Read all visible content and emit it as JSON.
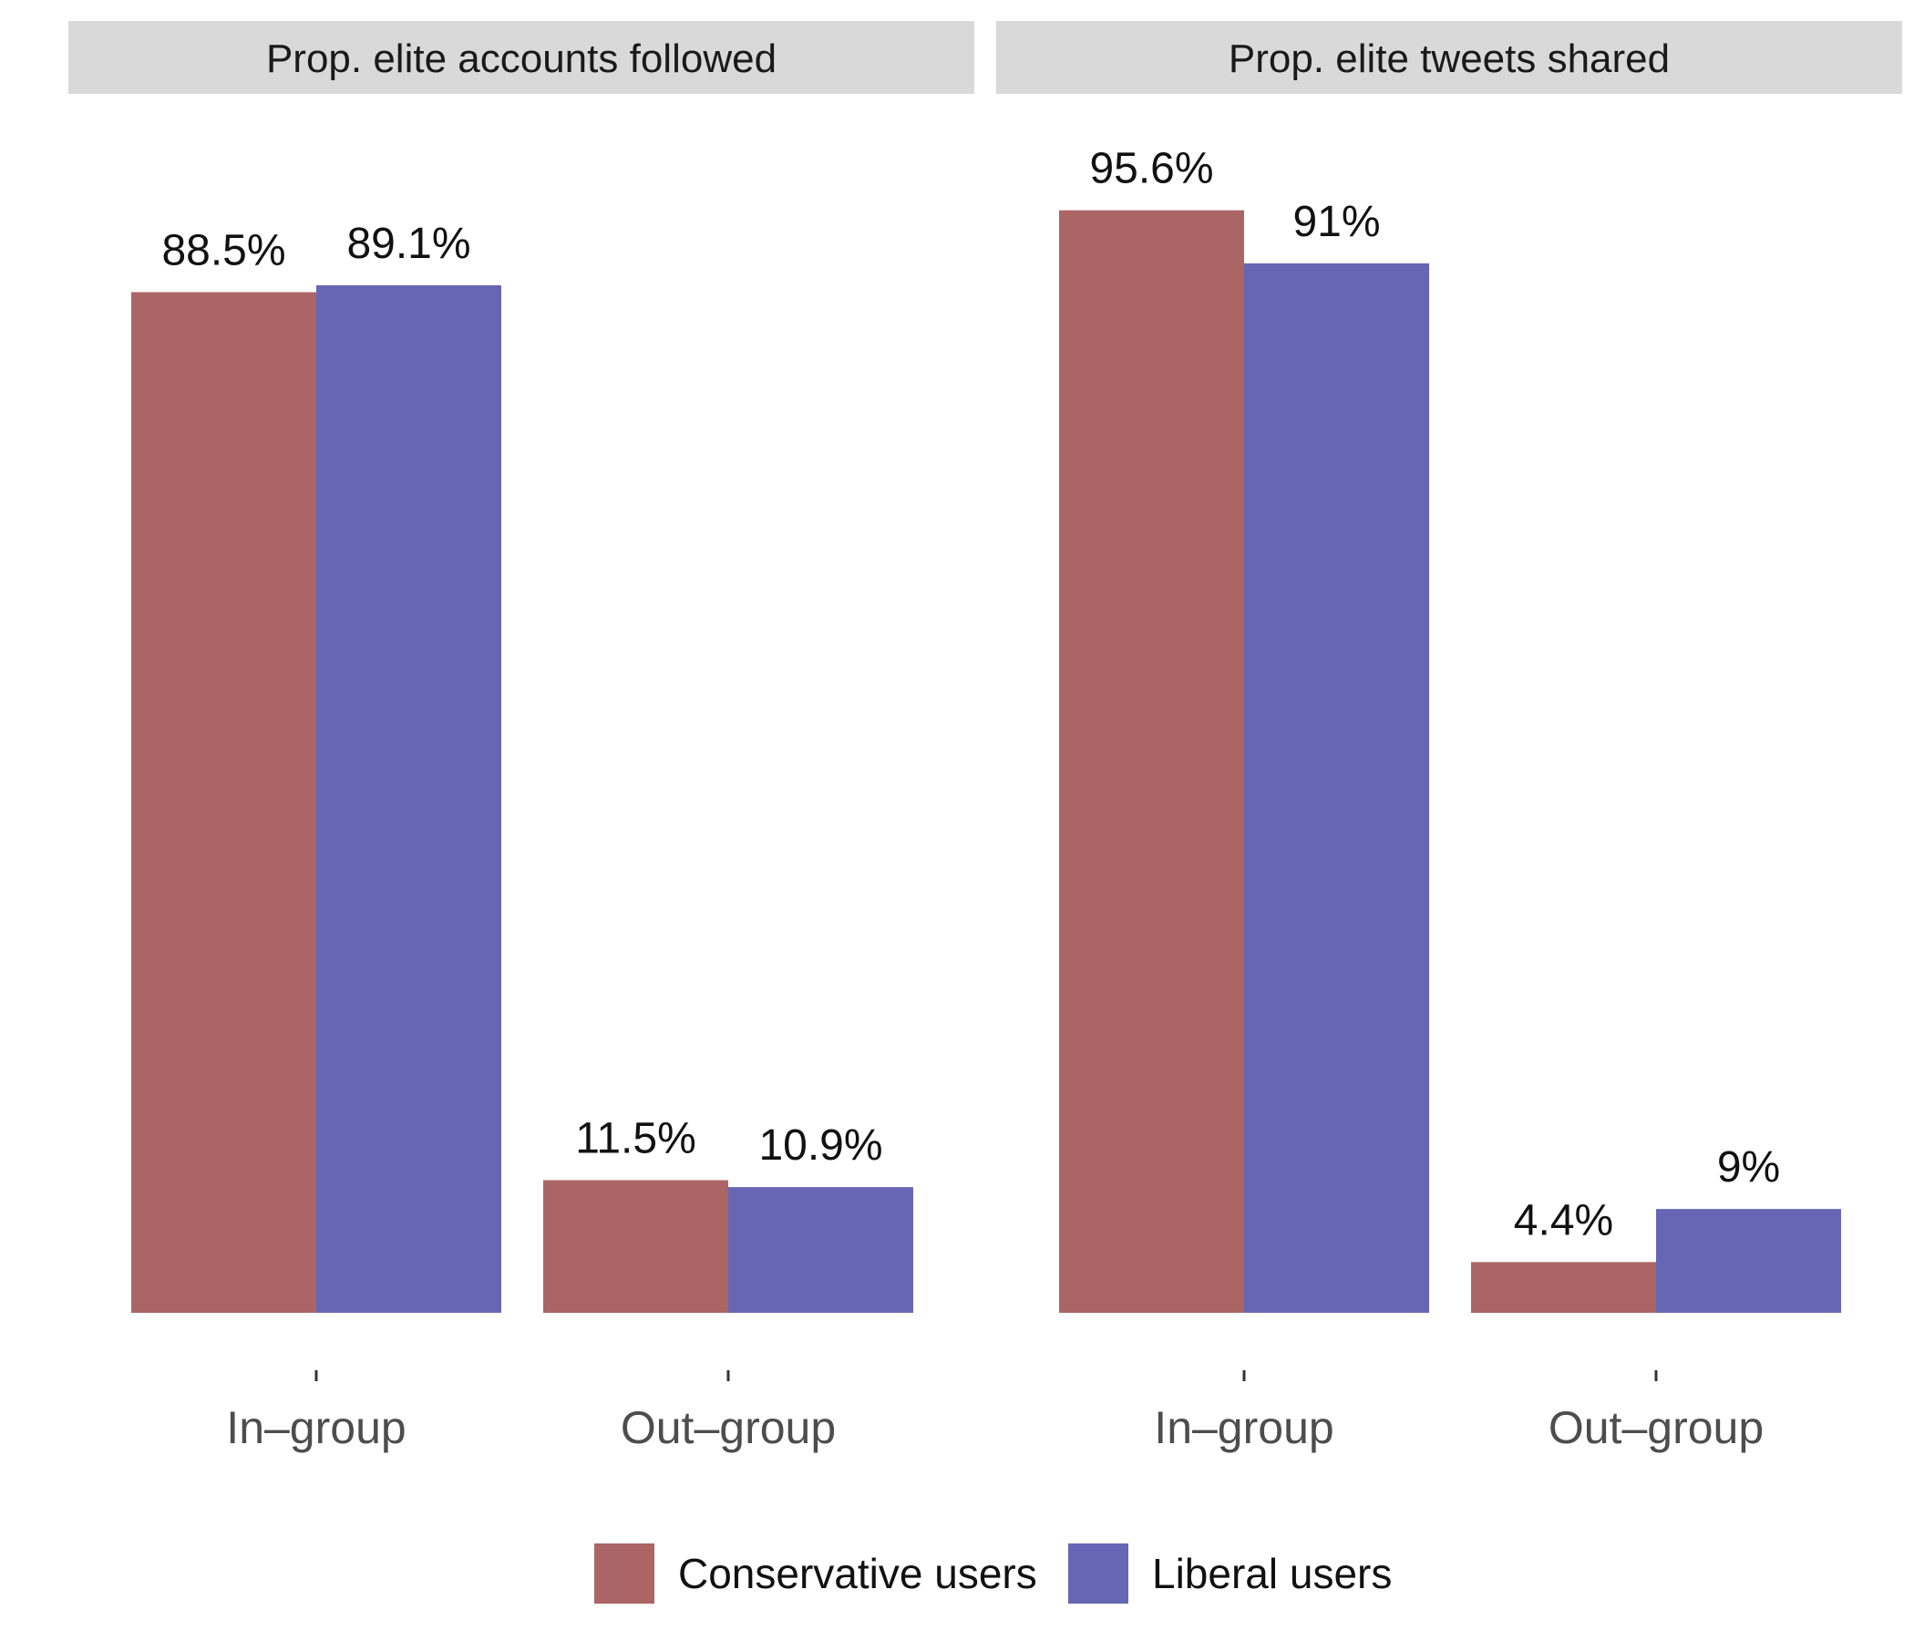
{
  "chart_data": [
    {
      "type": "bar",
      "title": "Prop. elite accounts followed",
      "categories": [
        "In–group",
        "Out–group"
      ],
      "series": [
        {
          "name": "Conservative users",
          "values": [
            88.5,
            11.5
          ],
          "labels": [
            "88.5%",
            "11.5%"
          ],
          "color": "#ab6565"
        },
        {
          "name": "Liberal users",
          "values": [
            89.1,
            10.9
          ],
          "labels": [
            "89.1%",
            "10.9%"
          ],
          "color": "#6666b5"
        }
      ],
      "ylim": [
        0,
        100
      ]
    },
    {
      "type": "bar",
      "title": "Prop. elite tweets shared",
      "categories": [
        "In–group",
        "Out–group"
      ],
      "series": [
        {
          "name": "Conservative users",
          "values": [
            95.6,
            4.4
          ],
          "labels": [
            "95.6%",
            "4.4%"
          ],
          "color": "#ab6565"
        },
        {
          "name": "Liberal users",
          "values": [
            91,
            9
          ],
          "labels": [
            "91%",
            "9%"
          ],
          "color": "#6666b5"
        }
      ],
      "ylim": [
        0,
        100
      ]
    }
  ],
  "legend": {
    "position": "bottom",
    "items": [
      {
        "label": "Conservative users",
        "color": "#ab6565"
      },
      {
        "label": "Liberal users",
        "color": "#6666b5"
      }
    ]
  },
  "strip_color": "#d9d9d9",
  "grid": false
}
